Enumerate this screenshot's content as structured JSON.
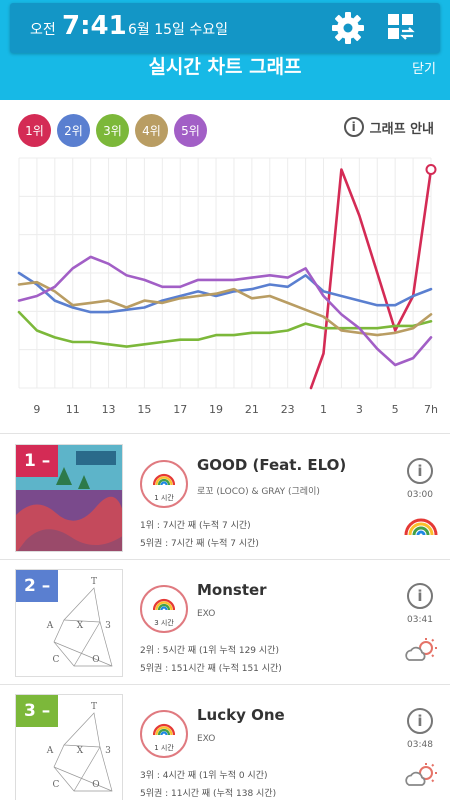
{
  "status_bar": {
    "ampm": "오전",
    "time": "7:41",
    "date": "6월 15일 수요일",
    "settings_icon": "gear-icon",
    "menu_icon": "grid-toggle-icon"
  },
  "header": {
    "title": "실시간 차트 그래프",
    "close_label": "닫기",
    "bg_color": "#17b9e6"
  },
  "legend": [
    {
      "label": "1위",
      "color": "#d42b55"
    },
    {
      "label": "2위",
      "color": "#5a7fd0"
    },
    {
      "label": "3위",
      "color": "#7cb83a"
    },
    {
      "label": "4위",
      "color": "#b99d63"
    },
    {
      "label": "5위",
      "color": "#a25fc6"
    }
  ],
  "graph_guide": {
    "label": "그래프 안내",
    "icon": "info-icon"
  },
  "chart_data": {
    "type": "line",
    "x": [
      "8",
      "9",
      "10",
      "11",
      "12",
      "13",
      "14",
      "15",
      "16",
      "17",
      "18",
      "19",
      "20",
      "21",
      "22",
      "23",
      "0",
      "1",
      "2",
      "3",
      "4",
      "5",
      "6",
      "7"
    ],
    "x_tick_labels": [
      "9",
      "11",
      "13",
      "15",
      "17",
      "19",
      "21",
      "23",
      "1",
      "3",
      "5",
      "7h"
    ],
    "y_axis": "rank (inverted, no labels)",
    "grid": true,
    "series": [
      {
        "name": "1위",
        "color": "#d42b55",
        "values": [
          null,
          null,
          null,
          null,
          null,
          null,
          null,
          null,
          null,
          null,
          null,
          null,
          null,
          null,
          null,
          null,
          null,
          85,
          5,
          25,
          50,
          75,
          60,
          5
        ]
      },
      {
        "name": "2위",
        "color": "#5a7fd0",
        "values": [
          50,
          55,
          62,
          65,
          67,
          67,
          66,
          65,
          62,
          60,
          58,
          60,
          58,
          57,
          55,
          56,
          51,
          58,
          60,
          62,
          64,
          64,
          60,
          57
        ]
      },
      {
        "name": "3위",
        "color": "#7cb83a",
        "values": [
          67,
          75,
          78,
          80,
          80,
          81,
          82,
          81,
          80,
          79,
          79,
          77,
          77,
          76,
          76,
          75,
          72,
          74,
          74,
          74,
          74,
          73,
          73,
          71
        ]
      },
      {
        "name": "4위",
        "color": "#b99d63",
        "values": [
          55,
          54,
          58,
          64,
          63,
          62,
          65,
          62,
          63,
          61,
          60,
          59,
          57,
          61,
          60,
          63,
          66,
          69,
          75,
          76,
          77,
          76,
          74,
          68
        ]
      },
      {
        "name": "5위",
        "color": "#a25fc6",
        "values": [
          62,
          60,
          56,
          48,
          43,
          46,
          51,
          53,
          56,
          56,
          53,
          53,
          53,
          52,
          51,
          52,
          48,
          60,
          68,
          74,
          83,
          90,
          87,
          78
        ]
      }
    ]
  },
  "songs": [
    {
      "rank": "1 –",
      "rank_color": "#d42b55",
      "streak": "1 시간",
      "title": "GOOD (Feat. ELO)",
      "artist": "로꼬 (LOCO) & GRAY (그레이)",
      "line1": "1위 : 7시간 째 (누적 7 시간)",
      "line2": "5위권 : 7시간 째 (누적 7 시간)",
      "time": "03:00",
      "weather": "rainbow-icon",
      "cover": "good-cover"
    },
    {
      "rank": "2 –",
      "rank_color": "#5a7fd0",
      "streak": "3 시간",
      "title": "Monster",
      "artist": "EXO",
      "line1": "2위 : 5시간 째 (1위 누적 129 시간)",
      "line2": "5위권 : 151시간 째 (누적 151 시간)",
      "time": "03:41",
      "weather": "sun-cloud-icon",
      "cover": "exo-cover",
      "cover_letters": [
        "T",
        "A",
        "X",
        "3",
        "C",
        "O"
      ]
    },
    {
      "rank": "3 –",
      "rank_color": "#7cb83a",
      "streak": "1 시간",
      "title": "Lucky One",
      "artist": "EXO",
      "line1": "3위 : 4시간 째 (1위 누적 0 시간)",
      "line2": "5위권 : 11시간 째 (누적 138 시간)",
      "time": "03:48",
      "weather": "sun-cloud-icon",
      "cover": "exo-cover",
      "cover_letters": [
        "T",
        "A",
        "X",
        "3",
        "C",
        "O"
      ]
    }
  ]
}
